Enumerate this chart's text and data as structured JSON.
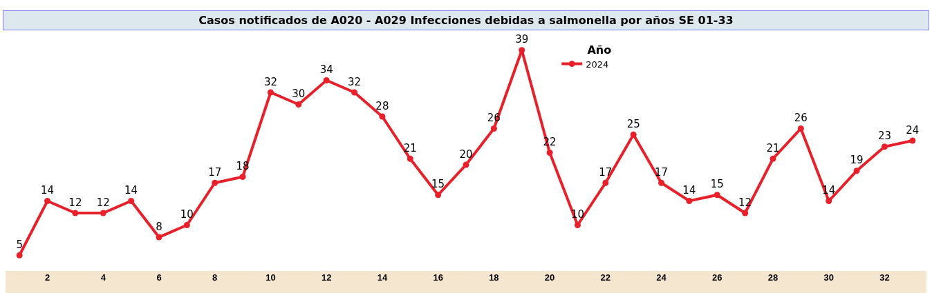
{
  "chart_data": {
    "type": "line",
    "title": "Casos notificados de A020 - A029 Infecciones debidas a salmonella por años SE 01-33",
    "categories": [
      null,
      "2",
      null,
      "4",
      null,
      "6",
      null,
      "8",
      null,
      "10",
      null,
      "12",
      null,
      "14",
      null,
      "16",
      null,
      "18",
      null,
      "20",
      null,
      "22",
      null,
      "24",
      null,
      "26",
      null,
      "28",
      null,
      "30",
      null,
      "32",
      null
    ],
    "series": [
      {
        "name": "2024",
        "color": "#e8202a",
        "values": [
          5,
          14,
          12,
          12,
          14,
          8,
          10,
          17,
          18,
          32,
          30,
          34,
          32,
          28,
          21,
          15,
          20,
          26,
          39,
          22,
          10,
          17,
          25,
          17,
          14,
          15,
          12,
          21,
          26,
          14,
          19,
          23,
          24
        ]
      }
    ],
    "legend_title": "Año",
    "legend": "top",
    "data_labels": true,
    "marker": "circle",
    "line_style": "solid",
    "tick_labels": "x"
  }
}
